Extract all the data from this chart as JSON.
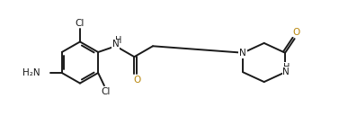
{
  "background_color": "#ffffff",
  "bond_color": "#1a1a1a",
  "oxygen_color": "#b8860b",
  "line_width": 1.4,
  "figsize": [
    3.77,
    1.39
  ],
  "dpi": 100,
  "xlim": [
    0,
    10
  ],
  "ylim": [
    0,
    3.7
  ]
}
